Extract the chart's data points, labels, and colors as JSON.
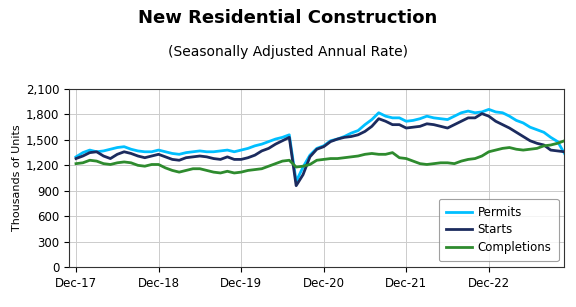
{
  "title": "New Residential Construction",
  "subtitle": "(Seasonally Adjusted Annual Rate)",
  "ylabel": "Thousands of Units",
  "ylim": [
    0,
    2100
  ],
  "yticks": [
    0,
    300,
    600,
    900,
    1200,
    1500,
    1800,
    2100
  ],
  "title_fontsize": 13,
  "subtitle_fontsize": 10,
  "ylabel_fontsize": 8,
  "tick_fontsize": 8.5,
  "colors": {
    "permits": "#00BFFF",
    "starts": "#1C2B5E",
    "completions": "#2E8B2E"
  },
  "permits": [
    1300,
    1350,
    1380,
    1360,
    1370,
    1390,
    1410,
    1420,
    1390,
    1370,
    1360,
    1360,
    1380,
    1360,
    1340,
    1330,
    1350,
    1360,
    1370,
    1360,
    1360,
    1370,
    1380,
    1360,
    1380,
    1400,
    1430,
    1450,
    1480,
    1510,
    1530,
    1560,
    1010,
    1180,
    1320,
    1400,
    1430,
    1490,
    1510,
    1540,
    1580,
    1610,
    1680,
    1740,
    1820,
    1780,
    1760,
    1760,
    1720,
    1730,
    1750,
    1780,
    1760,
    1750,
    1740,
    1780,
    1820,
    1840,
    1820,
    1830,
    1860,
    1830,
    1820,
    1780,
    1730,
    1700,
    1650,
    1620,
    1590,
    1530,
    1480,
    1340
  ],
  "starts": [
    1280,
    1310,
    1350,
    1360,
    1310,
    1280,
    1330,
    1360,
    1340,
    1310,
    1290,
    1310,
    1330,
    1300,
    1270,
    1260,
    1290,
    1300,
    1310,
    1300,
    1280,
    1270,
    1300,
    1270,
    1270,
    1290,
    1320,
    1370,
    1400,
    1450,
    1490,
    1530,
    960,
    1090,
    1300,
    1390,
    1420,
    1480,
    1510,
    1530,
    1540,
    1560,
    1600,
    1660,
    1750,
    1720,
    1680,
    1680,
    1640,
    1650,
    1660,
    1690,
    1680,
    1660,
    1640,
    1680,
    1720,
    1760,
    1760,
    1810,
    1780,
    1720,
    1680,
    1640,
    1590,
    1540,
    1490,
    1460,
    1440,
    1380,
    1370,
    1360
  ],
  "completions": [
    1220,
    1230,
    1260,
    1250,
    1220,
    1210,
    1230,
    1240,
    1230,
    1200,
    1190,
    1210,
    1210,
    1170,
    1140,
    1120,
    1140,
    1160,
    1160,
    1140,
    1120,
    1110,
    1130,
    1110,
    1120,
    1140,
    1150,
    1160,
    1190,
    1220,
    1250,
    1260,
    1180,
    1190,
    1210,
    1260,
    1270,
    1280,
    1280,
    1290,
    1300,
    1310,
    1330,
    1340,
    1330,
    1330,
    1350,
    1290,
    1280,
    1250,
    1220,
    1210,
    1220,
    1230,
    1230,
    1220,
    1250,
    1270,
    1280,
    1310,
    1360,
    1380,
    1400,
    1410,
    1390,
    1380,
    1390,
    1400,
    1430,
    1440,
    1460,
    1490
  ],
  "xtick_positions": [
    0,
    12,
    24,
    36,
    48,
    60
  ],
  "xtick_labels": [
    "Dec-17",
    "Dec-18",
    "Dec-19",
    "Dec-20",
    "Dec-21",
    "Dec-22"
  ],
  "legend_labels": [
    "Permits",
    "Starts",
    "Completions"
  ],
  "background_color": "#FFFFFF",
  "grid_color": "#CCCCCC",
  "linewidth": 2.0
}
